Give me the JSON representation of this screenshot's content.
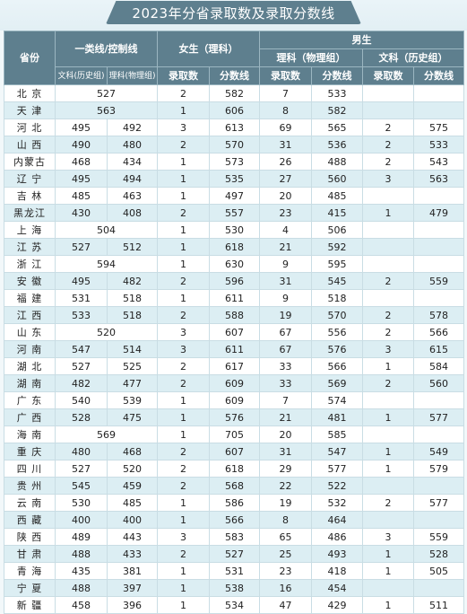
{
  "title": "2023年分省录取数及录取分数线",
  "headers": {
    "province": "省份",
    "line_group": "一类线/控制线",
    "line_wenke": "文科(历史组)",
    "line_like": "理科(物理组)",
    "female": "女生（理科）",
    "female_count": "录取数",
    "female_score": "分数线",
    "male": "男生",
    "male_like": "理科（物理组）",
    "male_like_count": "录取数",
    "male_like_score": "分数线",
    "male_wenke": "文科（历史组）",
    "male_wenke_count": "录取数",
    "male_wenke_score": "分数线"
  },
  "rows": [
    {
      "p": "北 京",
      "merged": "527",
      "wk": "",
      "lk": "",
      "fc": "2",
      "fs": "582",
      "mlc": "7",
      "mls": "533",
      "mwc": "",
      "mws": ""
    },
    {
      "p": "天 津",
      "merged": "563",
      "wk": "",
      "lk": "",
      "fc": "1",
      "fs": "606",
      "mlc": "8",
      "mls": "582",
      "mwc": "",
      "mws": ""
    },
    {
      "p": "河 北",
      "merged": "",
      "wk": "495",
      "lk": "492",
      "fc": "3",
      "fs": "613",
      "mlc": "69",
      "mls": "565",
      "mwc": "2",
      "mws": "575"
    },
    {
      "p": "山 西",
      "merged": "",
      "wk": "490",
      "lk": "480",
      "fc": "2",
      "fs": "570",
      "mlc": "31",
      "mls": "536",
      "mwc": "2",
      "mws": "533"
    },
    {
      "p": "内蒙古",
      "merged": "",
      "wk": "468",
      "lk": "434",
      "fc": "1",
      "fs": "573",
      "mlc": "26",
      "mls": "488",
      "mwc": "2",
      "mws": "543"
    },
    {
      "p": "辽 宁",
      "merged": "",
      "wk": "495",
      "lk": "494",
      "fc": "1",
      "fs": "535",
      "mlc": "27",
      "mls": "560",
      "mwc": "3",
      "mws": "563"
    },
    {
      "p": "吉 林",
      "merged": "",
      "wk": "485",
      "lk": "463",
      "fc": "1",
      "fs": "497",
      "mlc": "20",
      "mls": "485",
      "mwc": "",
      "mws": ""
    },
    {
      "p": "黑龙江",
      "merged": "",
      "wk": "430",
      "lk": "408",
      "fc": "2",
      "fs": "557",
      "mlc": "23",
      "mls": "415",
      "mwc": "1",
      "mws": "479"
    },
    {
      "p": "上 海",
      "merged": "504",
      "wk": "",
      "lk": "",
      "fc": "1",
      "fs": "530",
      "mlc": "4",
      "mls": "506",
      "mwc": "",
      "mws": ""
    },
    {
      "p": "江 苏",
      "merged": "",
      "wk": "527",
      "lk": "512",
      "fc": "1",
      "fs": "618",
      "mlc": "21",
      "mls": "592",
      "mwc": "",
      "mws": ""
    },
    {
      "p": "浙 江",
      "merged": "594",
      "wk": "",
      "lk": "",
      "fc": "1",
      "fs": "630",
      "mlc": "9",
      "mls": "595",
      "mwc": "",
      "mws": ""
    },
    {
      "p": "安 徽",
      "merged": "",
      "wk": "495",
      "lk": "482",
      "fc": "2",
      "fs": "596",
      "mlc": "31",
      "mls": "545",
      "mwc": "2",
      "mws": "559"
    },
    {
      "p": "福 建",
      "merged": "",
      "wk": "531",
      "lk": "518",
      "fc": "1",
      "fs": "611",
      "mlc": "9",
      "mls": "518",
      "mwc": "",
      "mws": ""
    },
    {
      "p": "江 西",
      "merged": "",
      "wk": "533",
      "lk": "518",
      "fc": "2",
      "fs": "588",
      "mlc": "19",
      "mls": "570",
      "mwc": "2",
      "mws": "578"
    },
    {
      "p": "山 东",
      "merged": "520",
      "wk": "",
      "lk": "",
      "fc": "3",
      "fs": "607",
      "mlc": "67",
      "mls": "556",
      "mwc": "2",
      "mws": "566"
    },
    {
      "p": "河 南",
      "merged": "",
      "wk": "547",
      "lk": "514",
      "fc": "3",
      "fs": "611",
      "mlc": "67",
      "mls": "576",
      "mwc": "3",
      "mws": "615"
    },
    {
      "p": "湖 北",
      "merged": "",
      "wk": "527",
      "lk": "525",
      "fc": "2",
      "fs": "617",
      "mlc": "33",
      "mls": "566",
      "mwc": "1",
      "mws": "584"
    },
    {
      "p": "湖 南",
      "merged": "",
      "wk": "482",
      "lk": "477",
      "fc": "2",
      "fs": "609",
      "mlc": "33",
      "mls": "569",
      "mwc": "2",
      "mws": "560"
    },
    {
      "p": "广 东",
      "merged": "",
      "wk": "540",
      "lk": "539",
      "fc": "1",
      "fs": "609",
      "mlc": "7",
      "mls": "574",
      "mwc": "",
      "mws": ""
    },
    {
      "p": "广 西",
      "merged": "",
      "wk": "528",
      "lk": "475",
      "fc": "1",
      "fs": "576",
      "mlc": "21",
      "mls": "481",
      "mwc": "1",
      "mws": "577"
    },
    {
      "p": "海 南",
      "merged": "569",
      "wk": "",
      "lk": "",
      "fc": "1",
      "fs": "705",
      "mlc": "20",
      "mls": "585",
      "mwc": "",
      "mws": ""
    },
    {
      "p": "重 庆",
      "merged": "",
      "wk": "480",
      "lk": "468",
      "fc": "2",
      "fs": "607",
      "mlc": "31",
      "mls": "547",
      "mwc": "1",
      "mws": "549"
    },
    {
      "p": "四 川",
      "merged": "",
      "wk": "527",
      "lk": "520",
      "fc": "2",
      "fs": "618",
      "mlc": "29",
      "mls": "577",
      "mwc": "1",
      "mws": "579"
    },
    {
      "p": "贵 州",
      "merged": "",
      "wk": "545",
      "lk": "459",
      "fc": "2",
      "fs": "568",
      "mlc": "22",
      "mls": "522",
      "mwc": "",
      "mws": ""
    },
    {
      "p": "云 南",
      "merged": "",
      "wk": "530",
      "lk": "485",
      "fc": "1",
      "fs": "586",
      "mlc": "19",
      "mls": "532",
      "mwc": "2",
      "mws": "577"
    },
    {
      "p": "西 藏",
      "merged": "",
      "wk": "400",
      "lk": "400",
      "fc": "1",
      "fs": "566",
      "mlc": "8",
      "mls": "464",
      "mwc": "",
      "mws": ""
    },
    {
      "p": "陕 西",
      "merged": "",
      "wk": "489",
      "lk": "443",
      "fc": "3",
      "fs": "583",
      "mlc": "65",
      "mls": "486",
      "mwc": "3",
      "mws": "559"
    },
    {
      "p": "甘 肃",
      "merged": "",
      "wk": "488",
      "lk": "433",
      "fc": "2",
      "fs": "527",
      "mlc": "25",
      "mls": "493",
      "mwc": "1",
      "mws": "528"
    },
    {
      "p": "青 海",
      "merged": "",
      "wk": "435",
      "lk": "381",
      "fc": "1",
      "fs": "531",
      "mlc": "23",
      "mls": "418",
      "mwc": "1",
      "mws": "505"
    },
    {
      "p": "宁 夏",
      "merged": "",
      "wk": "488",
      "lk": "397",
      "fc": "1",
      "fs": "538",
      "mlc": "16",
      "mls": "454",
      "mwc": "",
      "mws": ""
    },
    {
      "p": "新 疆",
      "merged": "",
      "wk": "458",
      "lk": "396",
      "fc": "1",
      "fs": "534",
      "mlc": "47",
      "mls": "429",
      "mwc": "1",
      "mws": "511"
    }
  ]
}
